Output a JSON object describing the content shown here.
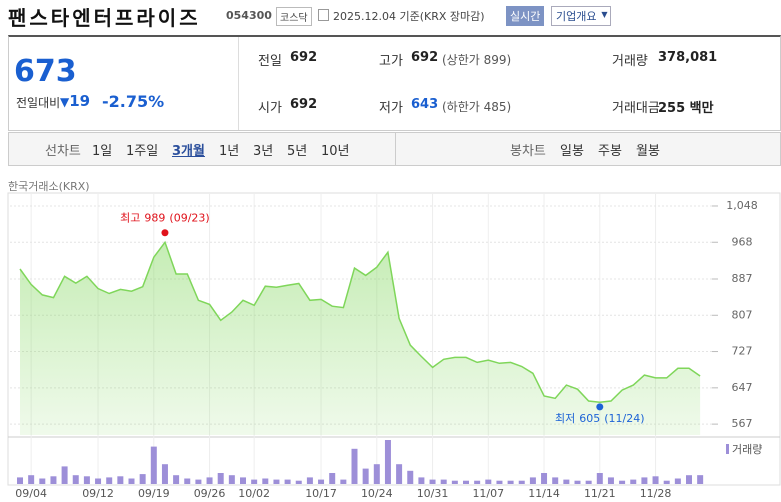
{
  "header": {
    "title": "팬스타엔터프라이즈",
    "code": "054300",
    "market": "코스닥",
    "date": "2025.12.04 기준(KRX 장마감)",
    "realtime": "실시간",
    "company": "기업개요"
  },
  "quote": {
    "price": "673",
    "change_label": "전일대비",
    "change": "19",
    "change_rate": "-2.75%"
  },
  "stats": [
    [
      {
        "label": "전일",
        "value": "692"
      },
      {
        "label": "고가",
        "value": "692",
        "sub": "(상한가 899)"
      },
      {
        "label": "거래량",
        "value": "378,081"
      }
    ],
    [
      {
        "label": "시가",
        "value": "692"
      },
      {
        "label": "저가",
        "value": "643",
        "sub": "(하한가 485)"
      },
      {
        "label": "거래대금",
        "value": "255 백만"
      }
    ]
  ],
  "tabs": {
    "line_label": "선차트",
    "line": [
      "1일",
      "1주일",
      "3개월",
      "1년",
      "3년",
      "5년",
      "10년"
    ],
    "active": 2,
    "candle_label": "봉차트",
    "candle": [
      "일봉",
      "주봉",
      "월봉"
    ]
  },
  "chart_data": {
    "type": "line",
    "source": "한국거래소(KRX)",
    "color": "#7fd65a",
    "categories": [
      null,
      "09/04",
      null,
      null,
      null,
      null,
      null,
      "09/12",
      null,
      null,
      null,
      null,
      "09/19",
      null,
      null,
      null,
      null,
      "09/26",
      null,
      null,
      null,
      "10/02",
      null,
      null,
      null,
      null,
      null,
      "10/17",
      null,
      null,
      null,
      null,
      "10/24",
      null,
      null,
      null,
      null,
      "10/31",
      null,
      null,
      null,
      null,
      "11/07",
      null,
      null,
      null,
      null,
      "11/14",
      null,
      null,
      null,
      null,
      "11/21",
      null,
      null,
      null,
      null,
      "11/28",
      null,
      null,
      null,
      null
    ],
    "values": [
      909,
      875,
      852,
      846,
      893,
      878,
      893,
      866,
      855,
      864,
      860,
      870,
      935,
      968,
      898,
      898,
      840,
      831,
      796,
      814,
      840,
      829,
      871,
      869,
      873,
      877,
      840,
      842,
      827,
      824,
      911,
      895,
      913,
      946,
      800,
      741,
      716,
      692,
      710,
      714,
      714,
      703,
      708,
      701,
      703,
      694,
      679,
      629,
      624,
      653,
      644,
      618,
      615,
      618,
      642,
      653,
      675,
      669,
      669,
      690,
      690,
      673
    ],
    "volume": {
      "name": "거래량",
      "color": "#9d8fd8",
      "values": [
        282000,
        376000,
        235000,
        329000,
        752000,
        376000,
        329000,
        235000,
        282000,
        329000,
        235000,
        423000,
        1598000,
        846000,
        376000,
        235000,
        188000,
        282000,
        470000,
        376000,
        282000,
        188000,
        235000,
        188000,
        188000,
        141000,
        282000,
        188000,
        470000,
        188000,
        1504000,
        658000,
        846000,
        1880000,
        846000,
        564000,
        282000,
        188000,
        188000,
        141000,
        141000,
        141000,
        188000,
        141000,
        141000,
        141000,
        282000,
        470000,
        282000,
        188000,
        141000,
        141000,
        470000,
        282000,
        141000,
        188000,
        282000,
        329000,
        141000,
        235000,
        376000,
        378081
      ]
    },
    "ylim": [
      543,
      1070
    ],
    "yticks": [
      {
        "value": 1048,
        "label": "1,048"
      },
      968,
      887,
      807,
      727,
      647,
      567
    ],
    "grid": true,
    "high": {
      "label": "최고",
      "value": 989,
      "date": "(09/23)",
      "color": "#e0121b"
    },
    "low": {
      "label": "최저",
      "value": 605,
      "date": "(11/24)",
      "color": "#1d63d6"
    }
  }
}
